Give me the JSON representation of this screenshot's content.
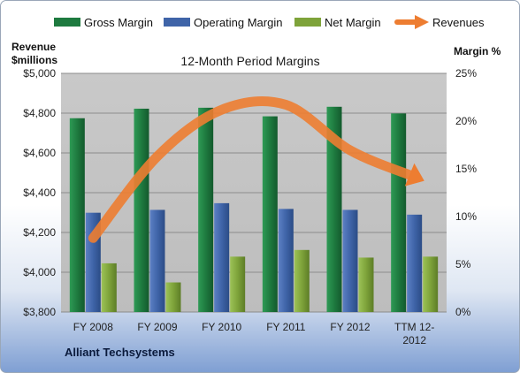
{
  "chart_data": {
    "type": "bar",
    "title": "12-Month Period Margins",
    "categories": [
      "FY 2008",
      "FY 2009",
      "FY 2010",
      "FY 2011",
      "FY 2012",
      "TTM 12-2012"
    ],
    "category_lines": [
      [
        "FY 2008"
      ],
      [
        "FY 2009"
      ],
      [
        "FY 2010"
      ],
      [
        "FY 2011"
      ],
      [
        "FY 2012"
      ],
      [
        "TTM 12-",
        "2012"
      ]
    ],
    "left_axis": {
      "title_lines": [
        "Revenue",
        "$millions"
      ],
      "ylim": [
        3800,
        5000
      ],
      "ticks": [
        3800,
        4000,
        4200,
        4400,
        4600,
        4800,
        5000
      ],
      "tick_labels": [
        "$3,800",
        "$4,000",
        "$4,200",
        "$4,400",
        "$4,600",
        "$4,800",
        "$5,000"
      ]
    },
    "right_axis": {
      "title": "Margin %",
      "ylim": [
        0,
        25
      ],
      "ticks": [
        0,
        5,
        10,
        15,
        20,
        25
      ],
      "tick_labels": [
        "0%",
        "5%",
        "10%",
        "15%",
        "20%",
        "25%"
      ]
    },
    "series": [
      {
        "name": "Gross Margin",
        "kind": "bar",
        "axis": "right",
        "color": "#1f7a3f",
        "values": [
          20.3,
          21.3,
          21.4,
          20.5,
          21.5,
          20.8
        ]
      },
      {
        "name": "Operating Margin",
        "kind": "bar",
        "axis": "right",
        "color": "#3f64a8",
        "values": [
          10.4,
          10.7,
          11.4,
          10.8,
          10.7,
          10.2
        ]
      },
      {
        "name": "Net Margin",
        "kind": "bar",
        "axis": "right",
        "color": "#7ea33a",
        "values": [
          5.1,
          3.1,
          5.8,
          6.5,
          5.7,
          5.8
        ]
      },
      {
        "name": "Revenues",
        "kind": "arrow-line",
        "axis": "left",
        "color": "#ed7d31",
        "values": [
          4172,
          4583,
          4817,
          4842,
          4613,
          4480
        ]
      }
    ],
    "legend_position": "top",
    "grid": true,
    "plot_background": "#c0c0c0",
    "company": "Alliant Techsystems"
  }
}
